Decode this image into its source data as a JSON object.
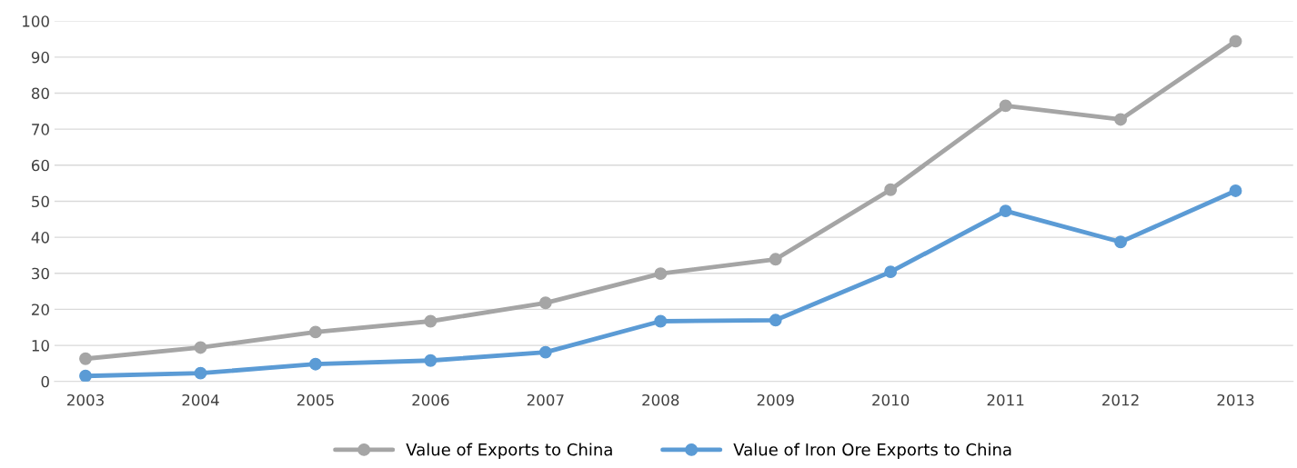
{
  "chart_data": {
    "type": "line",
    "categories": [
      "2003",
      "2004",
      "2005",
      "2006",
      "2007",
      "2008",
      "2009",
      "2010",
      "2011",
      "2012",
      "2013"
    ],
    "series": [
      {
        "name": "Value of Exports to China",
        "color": "#a5a5a5",
        "values": [
          6.3,
          9.4,
          13.7,
          16.7,
          21.8,
          29.9,
          33.9,
          53.2,
          76.5,
          72.7,
          94.4
        ]
      },
      {
        "name": "Value of Iron Ore Exports to China",
        "color": "#5b9bd5",
        "values": [
          1.5,
          2.3,
          4.8,
          5.8,
          8.1,
          16.7,
          17.0,
          30.4,
          47.3,
          38.7,
          52.9
        ]
      }
    ],
    "ylim": [
      0,
      100
    ],
    "yticks": [
      0,
      10,
      20,
      30,
      40,
      50,
      60,
      70,
      80,
      90,
      100
    ],
    "grid": "y",
    "legend": "bottom",
    "marker": "circle",
    "line_style": "solid"
  }
}
